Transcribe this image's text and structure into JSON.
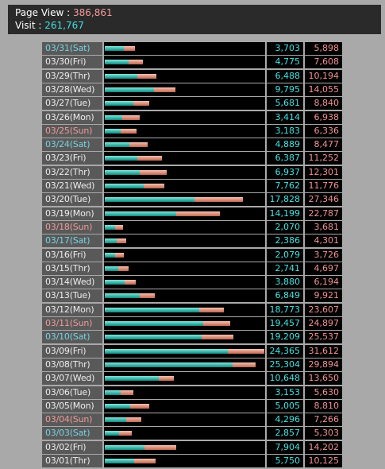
{
  "header": {
    "page_view_label": "Page View : ",
    "page_view_value": "386,861",
    "visit_label": "Visit : ",
    "visit_value": "261,767"
  },
  "colors": {
    "weekday": "#eeeeee",
    "saturday": "#77d4e4",
    "sunday": "#f09a9a",
    "visit": "#44e2e2",
    "page_view": "#f29292"
  },
  "chart_data": {
    "type": "bar",
    "orientation": "horizontal",
    "bar_max": 31612,
    "series": [
      {
        "name": "Visit",
        "values": [
          3703,
          4775,
          6488,
          9795,
          5681,
          3414,
          3183,
          4889,
          6387,
          6937,
          7762,
          17828,
          14199,
          2070,
          2386,
          2079,
          2741,
          3880,
          6849,
          18773,
          19457,
          19209,
          24365,
          25304,
          10648,
          3153,
          5005,
          4296,
          2857,
          7904,
          5750
        ]
      },
      {
        "name": "Page View",
        "values": [
          5898,
          7608,
          10194,
          14055,
          8840,
          6938,
          6336,
          8477,
          11252,
          12301,
          11776,
          27346,
          22787,
          3681,
          4301,
          3726,
          4697,
          6194,
          9921,
          23607,
          24897,
          25537,
          31612,
          29894,
          13650,
          5630,
          8810,
          7266,
          5303,
          14202,
          10125
        ]
      }
    ],
    "rows": [
      {
        "date": "03/31",
        "day": "(Sat)",
        "visit": 3703,
        "visit_text": "3,703",
        "pv": 5898,
        "pv_text": "5,898"
      },
      {
        "date": "03/30",
        "day": "(Fri)",
        "visit": 4775,
        "visit_text": "4,775",
        "pv": 7608,
        "pv_text": "7,608"
      },
      {
        "date": "03/29",
        "day": "(Thr)",
        "visit": 6488,
        "visit_text": "6,488",
        "pv": 10194,
        "pv_text": "10,194"
      },
      {
        "date": "03/28",
        "day": "(Wed)",
        "visit": 9795,
        "visit_text": "9,795",
        "pv": 14055,
        "pv_text": "14,055"
      },
      {
        "date": "03/27",
        "day": "(Tue)",
        "visit": 5681,
        "visit_text": "5,681",
        "pv": 8840,
        "pv_text": "8,840"
      },
      {
        "date": "03/26",
        "day": "(Mon)",
        "visit": 3414,
        "visit_text": "3,414",
        "pv": 6938,
        "pv_text": "6,938"
      },
      {
        "date": "03/25",
        "day": "(Sun)",
        "visit": 3183,
        "visit_text": "3,183",
        "pv": 6336,
        "pv_text": "6,336"
      },
      {
        "date": "03/24",
        "day": "(Sat)",
        "visit": 4889,
        "visit_text": "4,889",
        "pv": 8477,
        "pv_text": "8,477"
      },
      {
        "date": "03/23",
        "day": "(Fri)",
        "visit": 6387,
        "visit_text": "6,387",
        "pv": 11252,
        "pv_text": "11,252"
      },
      {
        "date": "03/22",
        "day": "(Thr)",
        "visit": 6937,
        "visit_text": "6,937",
        "pv": 12301,
        "pv_text": "12,301"
      },
      {
        "date": "03/21",
        "day": "(Wed)",
        "visit": 7762,
        "visit_text": "7,762",
        "pv": 11776,
        "pv_text": "11,776"
      },
      {
        "date": "03/20",
        "day": "(Tue)",
        "visit": 17828,
        "visit_text": "17,828",
        "pv": 27346,
        "pv_text": "27,346"
      },
      {
        "date": "03/19",
        "day": "(Mon)",
        "visit": 14199,
        "visit_text": "14,199",
        "pv": 22787,
        "pv_text": "22,787"
      },
      {
        "date": "03/18",
        "day": "(Sun)",
        "visit": 2070,
        "visit_text": "2,070",
        "pv": 3681,
        "pv_text": "3,681"
      },
      {
        "date": "03/17",
        "day": "(Sat)",
        "visit": 2386,
        "visit_text": "2,386",
        "pv": 4301,
        "pv_text": "4,301"
      },
      {
        "date": "03/16",
        "day": "(Fri)",
        "visit": 2079,
        "visit_text": "2,079",
        "pv": 3726,
        "pv_text": "3,726"
      },
      {
        "date": "03/15",
        "day": "(Thr)",
        "visit": 2741,
        "visit_text": "2,741",
        "pv": 4697,
        "pv_text": "4,697"
      },
      {
        "date": "03/14",
        "day": "(Wed)",
        "visit": 3880,
        "visit_text": "3,880",
        "pv": 6194,
        "pv_text": "6,194"
      },
      {
        "date": "03/13",
        "day": "(Tue)",
        "visit": 6849,
        "visit_text": "6,849",
        "pv": 9921,
        "pv_text": "9,921"
      },
      {
        "date": "03/12",
        "day": "(Mon)",
        "visit": 18773,
        "visit_text": "18,773",
        "pv": 23607,
        "pv_text": "23,607"
      },
      {
        "date": "03/11",
        "day": "(Sun)",
        "visit": 19457,
        "visit_text": "19,457",
        "pv": 24897,
        "pv_text": "24,897"
      },
      {
        "date": "03/10",
        "day": "(Sat)",
        "visit": 19209,
        "visit_text": "19,209",
        "pv": 25537,
        "pv_text": "25,537"
      },
      {
        "date": "03/09",
        "day": "(Fri)",
        "visit": 24365,
        "visit_text": "24,365",
        "pv": 31612,
        "pv_text": "31,612"
      },
      {
        "date": "03/08",
        "day": "(Thr)",
        "visit": 25304,
        "visit_text": "25,304",
        "pv": 29894,
        "pv_text": "29,894"
      },
      {
        "date": "03/07",
        "day": "(Wed)",
        "visit": 10648,
        "visit_text": "10,648",
        "pv": 13650,
        "pv_text": "13,650"
      },
      {
        "date": "03/06",
        "day": "(Tue)",
        "visit": 3153,
        "visit_text": "3,153",
        "pv": 5630,
        "pv_text": "5,630"
      },
      {
        "date": "03/05",
        "day": "(Mon)",
        "visit": 5005,
        "visit_text": "5,005",
        "pv": 8810,
        "pv_text": "8,810"
      },
      {
        "date": "03/04",
        "day": "(Sun)",
        "visit": 4296,
        "visit_text": "4,296",
        "pv": 7266,
        "pv_text": "7,266"
      },
      {
        "date": "03/03",
        "day": "(Sat)",
        "visit": 2857,
        "visit_text": "2,857",
        "pv": 5303,
        "pv_text": "5,303"
      },
      {
        "date": "03/02",
        "day": "(Fri)",
        "visit": 7904,
        "visit_text": "7,904",
        "pv": 14202,
        "pv_text": "14,202"
      },
      {
        "date": "03/01",
        "day": "(Thr)",
        "visit": 5750,
        "visit_text": "5,750",
        "pv": 10125,
        "pv_text": "10,125"
      }
    ]
  }
}
